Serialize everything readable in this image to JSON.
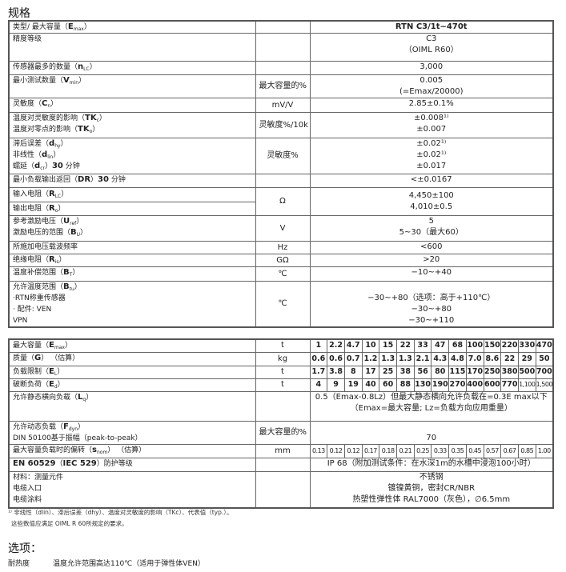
{
  "title": "规格",
  "table1": [
    {
      "h": 14,
      "label": [
        [
          {
            "t": "类型/ 最大容量（"
          },
          {
            "t": "E",
            "b": 1
          },
          {
            "t": "max",
            "sub": 1
          },
          {
            "t": "）"
          }
        ]
      ],
      "unit": "",
      "values": [
        "RTN C3/1t~470t"
      ],
      "bold": true
    },
    {
      "h": 35,
      "label": [
        [
          {
            "t": "精度等级"
          }
        ]
      ],
      "unit": "",
      "values": [
        "C3",
        "（OIML R60）"
      ]
    },
    {
      "h": 17,
      "label": [
        [
          {
            "t": "传感器最多的数量（"
          },
          {
            "t": "n",
            "b": 1
          },
          {
            "t": "LC",
            "sub": 1
          },
          {
            "t": "）"
          }
        ]
      ],
      "unit": "",
      "values": [
        "3,000"
      ]
    },
    {
      "h": 28,
      "label": [
        [
          {
            "t": "最小测试数量（"
          },
          {
            "t": "V",
            "b": 1
          },
          {
            "t": "min",
            "sub": 1
          },
          {
            "t": "）"
          }
        ]
      ],
      "unit": "最大容量的%",
      "values": [
        "0.005",
        "(=Emax/20000)"
      ]
    },
    {
      "h": 18,
      "label": [
        [
          {
            "t": "灵敏度（"
          },
          {
            "t": "C",
            "b": 1
          },
          {
            "t": "n",
            "sub": 1
          },
          {
            "t": "）"
          }
        ]
      ],
      "unit": "mV/V",
      "values": [
        "2.85±0.1%"
      ]
    },
    {
      "h": 32,
      "label": [
        [
          {
            "t": "温度对灵敏度的影响（"
          },
          {
            "t": "TK",
            "b": 1
          },
          {
            "t": "c",
            "sub": 1
          },
          {
            "t": "）"
          }
        ],
        [
          {
            "t": "温度对零点的影响（"
          },
          {
            "t": "TK",
            "b": 1
          },
          {
            "t": "o",
            "sub": 1
          },
          {
            "t": "）"
          }
        ]
      ],
      "unit": "灵敏度%/10k",
      "values": [
        "±0.008¹⁾",
        "±0.007"
      ]
    },
    {
      "h": 45,
      "label": [
        [
          {
            "t": "滞后误差（"
          },
          {
            "t": "d",
            "b": 1
          },
          {
            "t": "hy",
            "sub": 1
          },
          {
            "t": "）"
          }
        ],
        [
          {
            "t": "非线性（"
          },
          {
            "t": "d",
            "b": 1
          },
          {
            "t": "lin",
            "sub": 1
          },
          {
            "t": "）"
          }
        ],
        [
          {
            "t": "蠕延（"
          },
          {
            "t": "d",
            "b": 1
          },
          {
            "t": "cr",
            "sub": 1
          },
          {
            "t": "）"
          },
          {
            "t": "30",
            "b": 1
          },
          {
            "t": " 分钟"
          }
        ]
      ],
      "unit": "灵敏度%",
      "values": [
        "±0.02¹⁾",
        "±0.02¹⁾",
        "±0.017"
      ]
    },
    {
      "h": 17,
      "label": [
        [
          {
            "t": "最小负载输出返回（"
          },
          {
            "t": "DR",
            "b": 1
          },
          {
            "t": "）"
          },
          {
            "t": "30",
            "b": 1
          },
          {
            "t": " 分钟"
          }
        ]
      ],
      "unit": "",
      "values": [
        "<±0.0167"
      ]
    },
    {
      "h": 33,
      "split": true,
      "label": [
        [
          {
            "t": "输入电阻（"
          },
          {
            "t": "R",
            "b": 1
          },
          {
            "t": "LC",
            "sub": 1
          },
          {
            "t": "）"
          }
        ],
        [
          {
            "t": "输出电阻（"
          },
          {
            "t": "R",
            "b": 1
          },
          {
            "t": "o",
            "sub": 1
          },
          {
            "t": "）"
          }
        ]
      ],
      "unit": "Ω",
      "values": [
        "4,450±100",
        "4,010±0.5"
      ]
    },
    {
      "h": 32,
      "label": [
        [
          {
            "t": "参考激励电压（"
          },
          {
            "t": "U",
            "b": 1
          },
          {
            "t": "ref",
            "sub": 1
          },
          {
            "t": "）"
          }
        ],
        [
          {
            "t": "激励电压的范围（"
          },
          {
            "t": "B",
            "b": 1
          },
          {
            "t": "U",
            "sub": 1
          },
          {
            "t": "）"
          }
        ]
      ],
      "unit": "V",
      "values": [
        "5",
        "5~30（最大60）"
      ]
    },
    {
      "h": 16,
      "label": [
        [
          {
            "t": "所施加电压载波频率"
          }
        ]
      ],
      "unit": "Hz",
      "values": [
        "<600"
      ]
    },
    {
      "h": 16,
      "label": [
        [
          {
            "t": "绝缘电阻（"
          },
          {
            "t": "R",
            "b": 1
          },
          {
            "t": "is",
            "sub": 1
          },
          {
            "t": "）"
          }
        ]
      ],
      "unit": "GΩ",
      "values": [
        ">20"
      ]
    },
    {
      "h": 18,
      "label": [
        [
          {
            "t": "温度补偿范围（"
          },
          {
            "t": "B",
            "b": 1
          },
          {
            "t": "T",
            "sub": 1
          },
          {
            "t": "）"
          }
        ]
      ],
      "unit": "℃",
      "values": [
        "−10~+40"
      ]
    },
    {
      "h": 56,
      "label": [
        [
          {
            "t": "允许温度范围（"
          },
          {
            "t": "B",
            "b": 1
          },
          {
            "t": "tu",
            "sub": 1
          },
          {
            "t": "）"
          }
        ],
        [
          {
            "t": "  ·RTN称重传感器"
          }
        ],
        [
          {
            "t": "  · 配件:            VEN"
          }
        ],
        [
          {
            "t": "                          VPN"
          }
        ]
      ],
      "unit": "℃",
      "values": [
        "",
        "−30~+80（选项：高于+110℃）",
        "−30~+80",
        "−30~+110"
      ]
    }
  ],
  "table2": {
    "unit_rows": [
      {
        "h": 16,
        "label": [
          [
            {
              "t": "最大容量（"
            },
            {
              "t": "E",
              "b": 1
            },
            {
              "t": "max",
              "sub": 1
            },
            {
              "t": "）"
            }
          ]
        ],
        "unit": "t",
        "cells": [
          "1",
          "2.2",
          "4.7",
          "10",
          "15",
          "22",
          "33",
          "47",
          "68",
          "100",
          "150",
          "220",
          "330",
          "470"
        ]
      },
      {
        "h": 17,
        "label": [
          [
            {
              "t": "质量（"
            },
            {
              "t": "G",
              "b": 1
            },
            {
              "t": "）    （估算）"
            }
          ]
        ],
        "unit": "kg",
        "cells": [
          "0.6",
          "0.6",
          "0.7",
          "1.2",
          "1.3",
          "1.3",
          "2.1",
          "4.3",
          "4.8",
          "7.0",
          "8.6",
          "22",
          "29",
          "50"
        ]
      },
      {
        "h": 16,
        "label": [
          [
            {
              "t": "负载限制（"
            },
            {
              "t": "E",
              "b": 1
            },
            {
              "t": "L",
              "sub": 1
            },
            {
              "t": "）"
            }
          ]
        ],
        "unit": "t",
        "cells": [
          "1.7",
          "3.8",
          "8",
          "17",
          "25",
          "38",
          "56",
          "80",
          "115",
          "170",
          "250",
          "380",
          "500",
          "700"
        ]
      },
      {
        "h": 16,
        "label": [
          [
            {
              "t": "破断负荷（"
            },
            {
              "t": "E",
              "b": 1
            },
            {
              "t": "d",
              "sub": 1
            },
            {
              "t": "）"
            }
          ]
        ],
        "unit": "t",
        "cells": [
          "4",
          "9",
          "19",
          "40",
          "60",
          "88",
          "130",
          "190",
          "270",
          "400",
          "600",
          "770",
          "1,100",
          "1,500"
        ],
        "small": [
          12,
          13
        ]
      },
      {
        "h": 37,
        "label": [
          [
            {
              "t": "允许静态横向负载（"
            },
            {
              "t": "L",
              "b": 1
            },
            {
              "t": "q",
              "sub": 1
            },
            {
              "t": "）"
            }
          ]
        ],
        "unit": "",
        "span": [
          "0.5（Emax-0.8Lz）但最大静态横向允许负载在=0.3E max以下",
          "（Emax=最大容量; Lz=负载方向应用重量）"
        ]
      },
      {
        "h": 28,
        "label": [
          [
            {
              "t": "允许动态负载（"
            },
            {
              "t": "F",
              "b": 1
            },
            {
              "t": "dyn",
              "sub": 1
            },
            {
              "t": "）"
            }
          ],
          [
            {
              "t": "  DIN 50100基于振幅（peak-to-peak）"
            }
          ]
        ],
        "unit": "最大容量的%",
        "span": [
          "",
          "70"
        ]
      },
      {
        "h": 17,
        "label": [
          [
            {
              "t": "最大容量负载时的偏转（"
            },
            {
              "t": "s",
              "b": 1
            },
            {
              "t": "nom",
              "sub": 1
            },
            {
              "t": "）    （估算）"
            }
          ]
        ],
        "unit": "mm",
        "cells": [
          "0.13",
          "0.12",
          "0.12",
          "0.17",
          "0.18",
          "0.21",
          "0.25",
          "0.33",
          "0.35",
          "0.45",
          "0.57",
          "0.67",
          "0.85",
          "1.00"
        ],
        "small": [
          0,
          1,
          2,
          3,
          4,
          5,
          6,
          7,
          8,
          9,
          10,
          11,
          12,
          13
        ]
      },
      {
        "h": 17,
        "label": [
          [
            {
              "t": "EN 60529",
              "b": 1
            },
            {
              "t": "（"
            },
            {
              "t": "IEC 529",
              "b": 1
            },
            {
              "t": "）防护等级"
            }
          ]
        ],
        "unit": "",
        "span": [
          "IP 68（附加测试条件：在水深1m的水槽中浸泡100小时）"
        ]
      },
      {
        "h": 46,
        "label": [
          [
            {
              "t": "材料：测量元件"
            }
          ],
          [
            {
              "t": "                    电缆入口"
            }
          ],
          [
            {
              "t": "                    电缆涂料"
            }
          ]
        ],
        "unit": "",
        "span": [
          "不锈钢",
          "镀镍黄铜，密封CR/NBR",
          "热塑性弹性体 RAL7000（灰色），∅6.5mm"
        ]
      }
    ]
  },
  "footnotes": [
    "¹⁾ 非线性（dlin）、滞后误差（dhy）、温度对灵敏度的影响（TKc）、代表值（typ.）。",
    "这些数值应满足 OIML R 60所规定的要求。"
  ],
  "options": {
    "title": "选项：",
    "key": "耐热度",
    "value": "温度允许范围高达110℃（适用于弹性体VEN）"
  }
}
